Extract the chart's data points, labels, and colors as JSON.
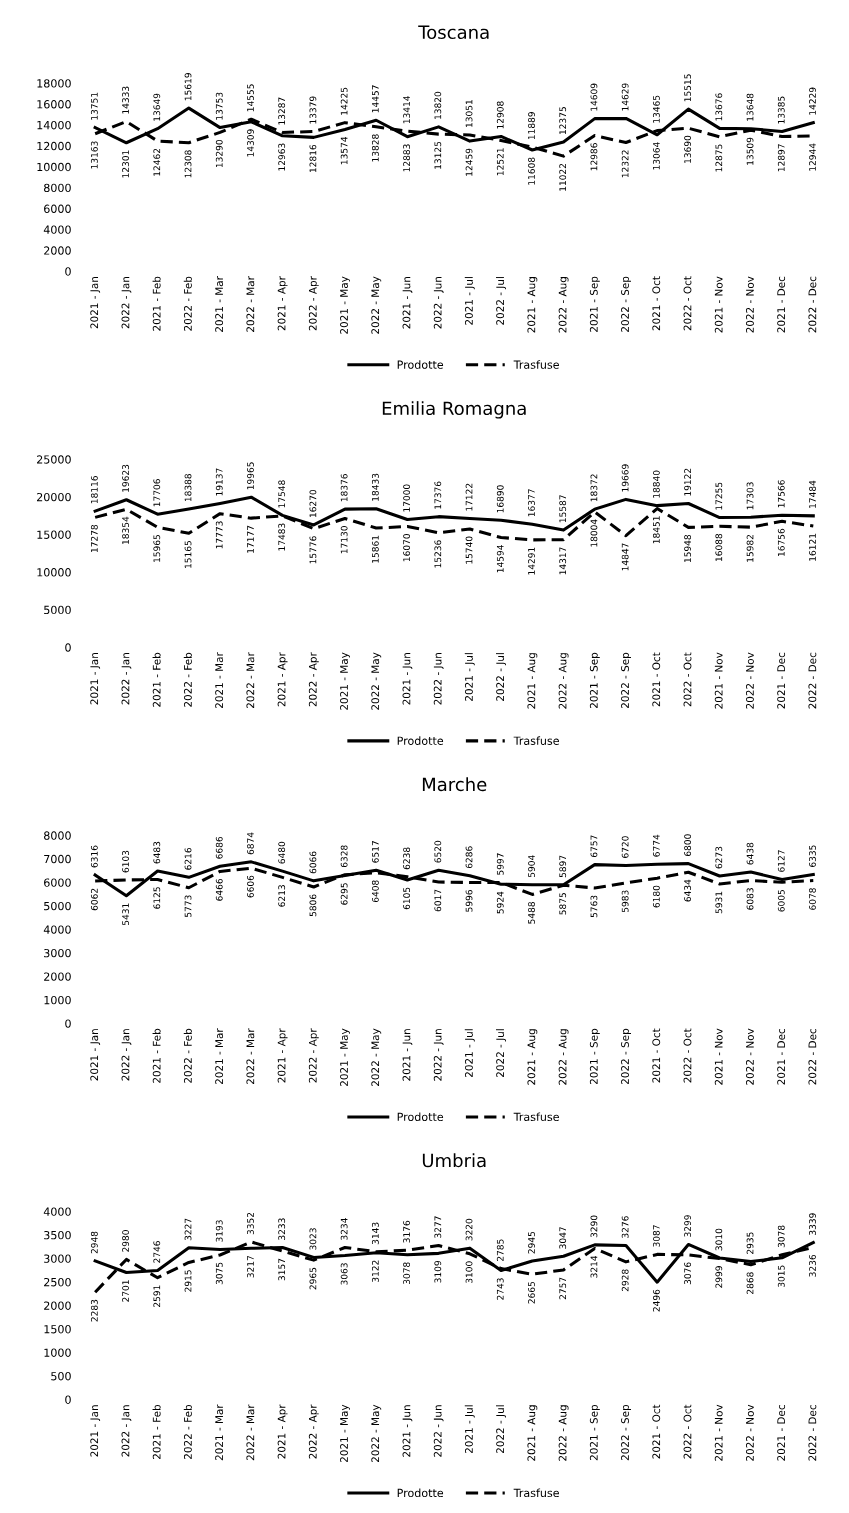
{
  "chart_data": [
    {
      "type": "line",
      "title": "Toscana",
      "categories": [
        "2021 - Jan",
        "2022 - Jan",
        "2021 - Feb",
        "2022 - Feb",
        "2021 - Mar",
        "2022 - Mar",
        "2021 - Apr",
        "2022 - Apr",
        "2021 - May",
        "2022 - May",
        "2021 - Jun",
        "2022 - Jun",
        "2021 - Jul",
        "2022 - Jul",
        "2021 - Aug",
        "2022 - Aug",
        "2021 - Sep",
        "2022 - Sep",
        "2021 - Oct",
        "2022 - Oct",
        "2021 - Nov",
        "2022 - Nov",
        "2021 - Dec",
        "2022 - Dec"
      ],
      "ylim": [
        0,
        18000
      ],
      "yticks": [
        0,
        2000,
        4000,
        6000,
        8000,
        10000,
        12000,
        14000,
        16000,
        18000
      ],
      "grid": false,
      "legend": "bottom",
      "marker": "none",
      "data_labels": true,
      "series": [
        {
          "name": "Prodotte",
          "color": "#000000",
          "line_style": "solid",
          "values": [
            13751,
            12301,
            13649,
            15619,
            13753,
            14309,
            12963,
            12816,
            13574,
            14457,
            12883,
            13820,
            12459,
            12908,
            11608,
            12375,
            14609,
            14629,
            13064,
            15515,
            13676,
            13648,
            13385,
            14229
          ]
        },
        {
          "name": "Trasfuse",
          "color": "#000000",
          "line_style": "dashed",
          "values": [
            13163,
            14333,
            12462,
            12308,
            13290,
            14555,
            13287,
            13379,
            14225,
            13828,
            13414,
            13125,
            13051,
            12521,
            11889,
            11022,
            12986,
            12322,
            13465,
            13690,
            12875,
            13509,
            12897,
            12944
          ]
        }
      ]
    },
    {
      "type": "line",
      "title": "Emilia Romagna",
      "categories": [
        "2021 - Jan",
        "2022 - Jan",
        "2021 - Feb",
        "2022 - Feb",
        "2021 - Mar",
        "2022 - Mar",
        "2021 - Apr",
        "2022 - Apr",
        "2021 - May",
        "2022 - May",
        "2021 - Jun",
        "2022 - Jun",
        "2021 - Jul",
        "2022 - Jul",
        "2021 - Aug",
        "2022 - Aug",
        "2021 - Sep",
        "2022 - Sep",
        "2021 - Oct",
        "2022 - Oct",
        "2021 - Nov",
        "2022 - Nov",
        "2021 - Dec",
        "2022 - Dec"
      ],
      "ylim": [
        0,
        25000
      ],
      "yticks": [
        0,
        5000,
        10000,
        15000,
        20000,
        25000
      ],
      "grid": false,
      "legend": "bottom",
      "marker": "none",
      "data_labels": true,
      "series": [
        {
          "name": "Prodotte",
          "color": "#000000",
          "line_style": "solid",
          "values": [
            18116,
            19623,
            17706,
            18388,
            19137,
            19965,
            17548,
            16270,
            18376,
            18433,
            17000,
            17376,
            17122,
            16890,
            16377,
            15587,
            18372,
            19669,
            18840,
            19122,
            17255,
            17303,
            17566,
            17484
          ]
        },
        {
          "name": "Trasfuse",
          "color": "#000000",
          "line_style": "dashed",
          "values": [
            17278,
            18354,
            15965,
            15165,
            17773,
            17177,
            17483,
            15776,
            17130,
            15861,
            16070,
            15236,
            15740,
            14594,
            14291,
            14317,
            18004,
            14847,
            18451,
            15948,
            16088,
            15982,
            16756,
            16121
          ]
        }
      ]
    },
    {
      "type": "line",
      "title": "Marche",
      "categories": [
        "2021 - Jan",
        "2022 - Jan",
        "2021 - Feb",
        "2022 - Feb",
        "2021 - Mar",
        "2022 - Mar",
        "2021 - Apr",
        "2022 - Apr",
        "2021 - May",
        "2022 - May",
        "2021 - Jun",
        "2022 - Jun",
        "2021 - Jul",
        "2022 - Jul",
        "2021 - Aug",
        "2022 - Aug",
        "2021 - Sep",
        "2022 - Sep",
        "2021 - Oct",
        "2022 - Oct",
        "2021 - Nov",
        "2022 - Nov",
        "2021 - Dec",
        "2022 - Dec"
      ],
      "ylim": [
        0,
        8000
      ],
      "yticks": [
        0,
        1000,
        2000,
        3000,
        4000,
        5000,
        6000,
        7000,
        8000
      ],
      "grid": false,
      "legend": "bottom",
      "marker": "none",
      "data_labels": true,
      "series": [
        {
          "name": "Prodotte",
          "color": "#000000",
          "line_style": "solid",
          "values": [
            6316,
            5431,
            6483,
            6216,
            6686,
            6874,
            6480,
            6066,
            6295,
            6517,
            6105,
            6520,
            6286,
            5924,
            5904,
            5897,
            6757,
            6720,
            6774,
            6800,
            6273,
            6438,
            6127,
            6335
          ]
        },
        {
          "name": "Trasfuse",
          "color": "#000000",
          "line_style": "dashed",
          "values": [
            6062,
            6103,
            6125,
            5773,
            6466,
            6606,
            6213,
            5806,
            6328,
            6408,
            6238,
            6017,
            5996,
            5997,
            5488,
            5875,
            5763,
            5983,
            6180,
            6434,
            5931,
            6083,
            6005,
            6078
          ]
        }
      ]
    },
    {
      "type": "line",
      "title": "Umbria",
      "categories": [
        "2021 - Jan",
        "2022 - Jan",
        "2021 - Feb",
        "2022 - Feb",
        "2021 - Mar",
        "2022 - Mar",
        "2021 - Apr",
        "2022 - Apr",
        "2021 - May",
        "2022 - May",
        "2021 - Jun",
        "2022 - Jun",
        "2021 - Jul",
        "2022 - Jul",
        "2021 - Aug",
        "2022 - Aug",
        "2021 - Sep",
        "2022 - Sep",
        "2021 - Oct",
        "2022 - Oct",
        "2021 - Nov",
        "2022 - Nov",
        "2021 - Dec",
        "2022 - Dec"
      ],
      "ylim": [
        0,
        4000
      ],
      "yticks": [
        0,
        500,
        1000,
        1500,
        2000,
        2500,
        3000,
        3500,
        4000
      ],
      "grid": false,
      "legend": "bottom",
      "marker": "none",
      "data_labels": true,
      "series": [
        {
          "name": "Prodotte",
          "color": "#000000",
          "line_style": "solid",
          "values": [
            2948,
            2701,
            2746,
            3227,
            3193,
            3217,
            3233,
            3023,
            3063,
            3122,
            3078,
            3109,
            3220,
            2743,
            2945,
            3047,
            3290,
            3276,
            2496,
            3299,
            3010,
            2935,
            3015,
            3339
          ]
        },
        {
          "name": "Trasfuse",
          "color": "#000000",
          "line_style": "dashed",
          "values": [
            2283,
            2980,
            2591,
            2915,
            3075,
            3352,
            3157,
            2965,
            3234,
            3143,
            3176,
            3277,
            3100,
            2785,
            2665,
            2757,
            3214,
            2928,
            3087,
            3076,
            2999,
            2868,
            3078,
            3236
          ]
        }
      ]
    }
  ]
}
